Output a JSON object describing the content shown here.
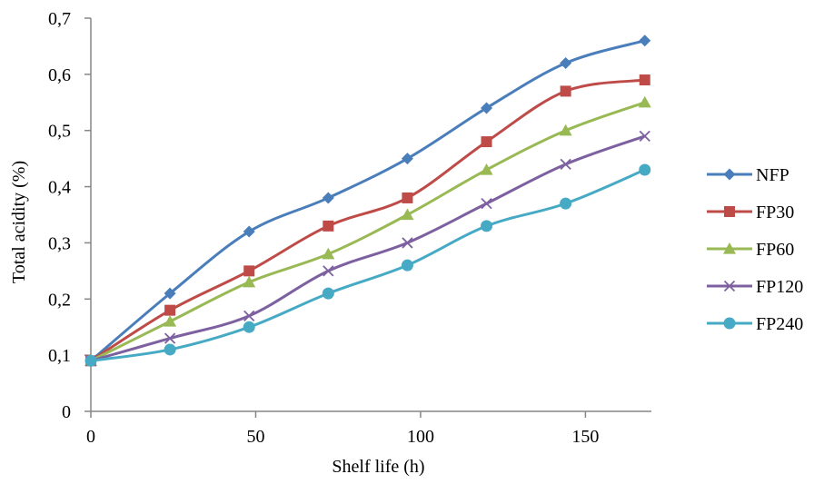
{
  "chart_data": {
    "type": "line",
    "title": "",
    "xlabel": "Shelf life (h)",
    "ylabel": "Total acidity (%)",
    "xlim": [
      0,
      170
    ],
    "ylim": [
      0,
      0.7
    ],
    "xticks": [
      0,
      50,
      100,
      150
    ],
    "yticks": [
      0,
      0.1,
      0.2,
      0.3,
      0.4,
      0.5,
      0.6,
      0.7
    ],
    "xtick_labels": [
      "0",
      "50",
      "100",
      "150"
    ],
    "ytick_labels": [
      "0",
      "0,1",
      "0,2",
      "0,3",
      "0,4",
      "0,5",
      "0,6",
      "0,7"
    ],
    "grid": false,
    "legend_position": "right",
    "x": [
      0,
      24,
      48,
      72,
      96,
      120,
      144,
      168
    ],
    "series": [
      {
        "name": "NFP",
        "color": "#4A7EBB",
        "marker": "diamond",
        "values": [
          0.09,
          0.21,
          0.32,
          0.38,
          0.45,
          0.54,
          0.62,
          0.66
        ]
      },
      {
        "name": "FP30",
        "color": "#BE4B48",
        "marker": "square",
        "values": [
          0.09,
          0.18,
          0.25,
          0.33,
          0.38,
          0.48,
          0.57,
          0.59
        ]
      },
      {
        "name": "FP60",
        "color": "#98B954",
        "marker": "triangle",
        "values": [
          0.09,
          0.16,
          0.23,
          0.28,
          0.35,
          0.43,
          0.5,
          0.55
        ]
      },
      {
        "name": "FP120",
        "color": "#7D60A0",
        "marker": "x",
        "values": [
          0.09,
          0.13,
          0.17,
          0.25,
          0.3,
          0.37,
          0.44,
          0.49
        ]
      },
      {
        "name": "FP240",
        "color": "#46AAC5",
        "marker": "circle",
        "values": [
          0.09,
          0.11,
          0.15,
          0.21,
          0.26,
          0.33,
          0.37,
          0.43
        ]
      }
    ]
  }
}
